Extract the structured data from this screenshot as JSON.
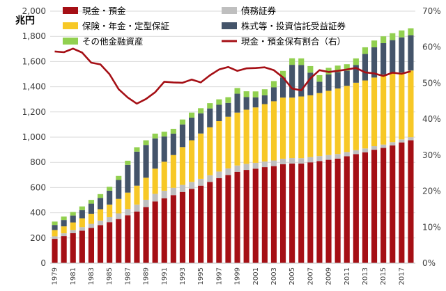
{
  "chart_data": {
    "type": "bar",
    "stacked": true,
    "unit_label": "兆円",
    "x": [
      1979,
      1980,
      1981,
      1982,
      1983,
      1984,
      1985,
      1986,
      1987,
      1988,
      1989,
      1990,
      1991,
      1992,
      1993,
      1994,
      1995,
      1996,
      1997,
      1998,
      1999,
      2000,
      2001,
      2002,
      2003,
      2004,
      2005,
      2006,
      2007,
      2008,
      2009,
      2010,
      2011,
      2012,
      2013,
      2014,
      2015,
      2016,
      2017,
      2018
    ],
    "x_tick_labels": [
      "1979",
      "1981",
      "1983",
      "1985",
      "1987",
      "1989",
      "1991",
      "1993",
      "1995",
      "1997",
      "1999",
      "2001",
      "2003",
      "2005",
      "2007",
      "2009",
      "2011",
      "2013",
      "2015",
      "2017"
    ],
    "ylim_left": [
      0,
      2000
    ],
    "y_ticks_left": [
      "0",
      "200",
      "400",
      "600",
      "800",
      "1,000",
      "1,200",
      "1,400",
      "1,600",
      "1,800",
      "2,000"
    ],
    "ylim_right": [
      0,
      70
    ],
    "y_ticks_right": [
      "0%",
      "10%",
      "20%",
      "30%",
      "40%",
      "50%",
      "60%",
      "70%"
    ],
    "series": [
      {
        "name": "現金・預金",
        "color": "#a50f15",
        "values": [
          193,
          215,
          238,
          258,
          280,
          302,
          325,
          350,
          380,
          410,
          445,
          490,
          515,
          540,
          565,
          590,
          615,
          645,
          675,
          700,
          725,
          740,
          750,
          762,
          770,
          785,
          790,
          790,
          800,
          810,
          820,
          830,
          848,
          865,
          880,
          900,
          915,
          935,
          958,
          975
        ]
      },
      {
        "name": "債務証券",
        "color": "#bfbfbf",
        "values": [
          20,
          22,
          25,
          28,
          32,
          36,
          40,
          45,
          50,
          55,
          58,
          60,
          60,
          58,
          56,
          55,
          54,
          53,
          52,
          52,
          50,
          48,
          46,
          45,
          45,
          44,
          44,
          43,
          42,
          40,
          38,
          36,
          34,
          32,
          30,
          28,
          26,
          25,
          24,
          24
        ]
      },
      {
        "name": "保険・年金・定型保証",
        "color": "#f7c826",
        "values": [
          50,
          55,
          60,
          70,
          80,
          90,
          100,
          115,
          130,
          150,
          175,
          200,
          230,
          260,
          300,
          330,
          360,
          380,
          400,
          410,
          420,
          430,
          440,
          455,
          470,
          485,
          480,
          490,
          490,
          500,
          510,
          520,
          525,
          535,
          540,
          545,
          555,
          550,
          530,
          530
        ]
      },
      {
        "name": "株式等・投資信託受益証券",
        "color": "#44546a",
        "values": [
          40,
          50,
          55,
          65,
          80,
          90,
          110,
          150,
          220,
          270,
          260,
          240,
          200,
          170,
          180,
          180,
          160,
          150,
          130,
          110,
          150,
          100,
          80,
          70,
          110,
          160,
          260,
          250,
          180,
          90,
          130,
          130,
          120,
          140,
          210,
          240,
          250,
          260,
          280,
          280
        ]
      },
      {
        "name": "その他金融資産",
        "color": "#92d050",
        "values": [
          27,
          28,
          28,
          29,
          30,
          30,
          31,
          32,
          33,
          35,
          37,
          38,
          38,
          38,
          39,
          40,
          41,
          42,
          43,
          45,
          45,
          46,
          47,
          48,
          50,
          52,
          52,
          52,
          52,
          52,
          52,
          52,
          52,
          53,
          53,
          54,
          54,
          55,
          55,
          55
        ]
      }
    ],
    "line": {
      "name": "現金・預金保有割合（右）",
      "color": "#a50f15",
      "values": [
        58.8,
        58.6,
        59.6,
        58.5,
        55.7,
        55.2,
        52.5,
        48.3,
        46.0,
        44.3,
        45.6,
        47.5,
        50.4,
        50.2,
        50.1,
        51.0,
        50.2,
        52.2,
        53.8,
        54.5,
        53.4,
        54.1,
        54.2,
        54.4,
        53.6,
        51.6,
        48.5,
        48.0,
        51.3,
        53.6,
        53.1,
        53.4,
        53.8,
        54.2,
        53.0,
        52.7,
        52.0,
        52.9,
        52.6,
        53.3
      ]
    },
    "legend": {
      "placement": "top",
      "columns": 2
    }
  }
}
